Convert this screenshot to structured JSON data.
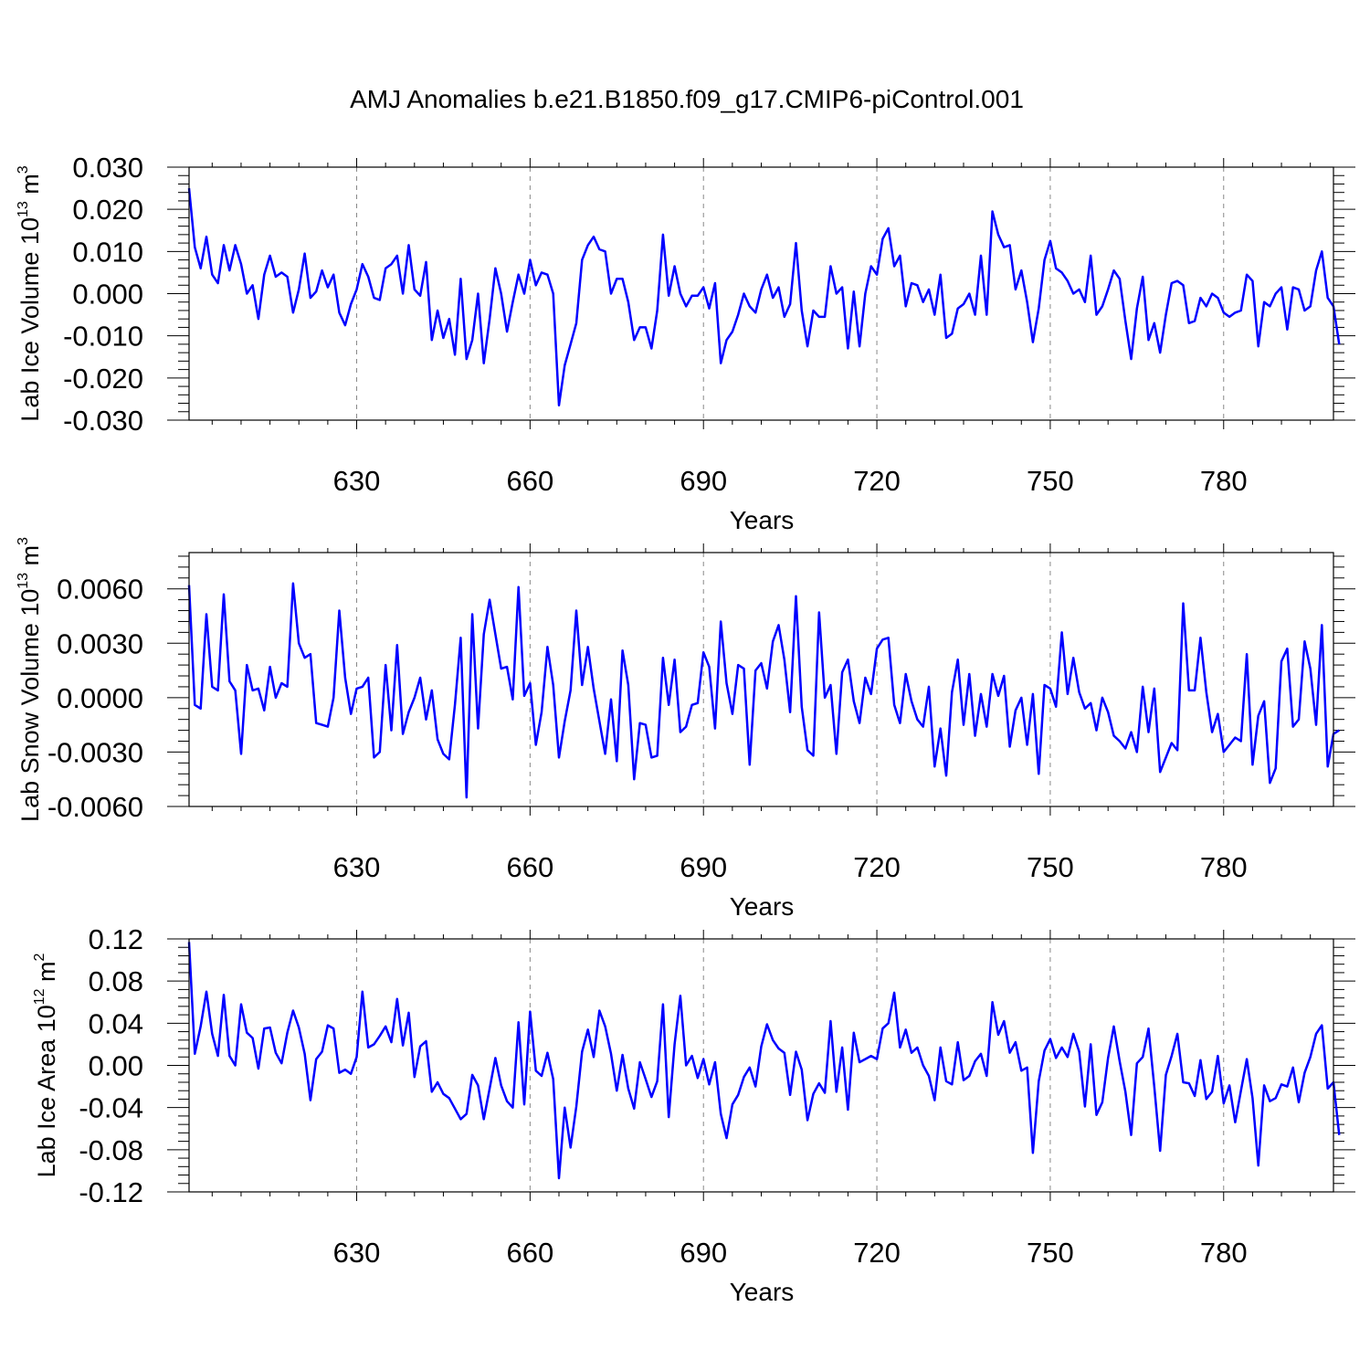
{
  "title": "AMJ Anomalies b.e21.B1850.f09_g17.CMIP6-piControl.001",
  "chart_data": [
    {
      "type": "line",
      "ylabel_prefix": "Lab Ice Volume 10",
      "ylabel_exp": "13",
      "ylabel_unit": " m",
      "ylabel_unit_exp": "3",
      "xlabel": "Years",
      "xlim": [
        601,
        799
      ],
      "ylim": [
        -0.03,
        0.03
      ],
      "xticks": [
        630,
        660,
        690,
        720,
        750,
        780
      ],
      "xtick_labels": [
        "630",
        "660",
        "690",
        "720",
        "750",
        "780"
      ],
      "yticks": [
        -0.03,
        -0.02,
        -0.01,
        0.0,
        0.01,
        0.02,
        0.03
      ],
      "ytick_labels": [
        "-0.030",
        "-0.020",
        "-0.010",
        "0.000",
        "0.010",
        "0.020",
        "0.030"
      ],
      "x_start": 601,
      "color": "#0000ff",
      "values": [
        0.025,
        0.011,
        0.006,
        0.0135,
        0.0045,
        0.0025,
        0.0115,
        0.0055,
        0.0115,
        0.007,
        0.0,
        0.002,
        -0.006,
        0.0045,
        0.009,
        0.004,
        0.005,
        0.004,
        -0.0045,
        0.001,
        0.0095,
        -0.001,
        0.0005,
        0.0055,
        0.0015,
        0.0045,
        -0.0045,
        -0.0075,
        -0.0025,
        0.001,
        0.007,
        0.004,
        -0.001,
        -0.0015,
        0.006,
        0.007,
        0.009,
        0.0,
        0.0115,
        0.001,
        -0.0005,
        0.0075,
        -0.011,
        -0.004,
        -0.0105,
        -0.006,
        -0.0145,
        0.0035,
        -0.0155,
        -0.011,
        0.0,
        -0.0165,
        -0.006,
        0.006,
        0.0,
        -0.009,
        -0.002,
        0.0045,
        0.0,
        0.008,
        0.002,
        0.005,
        0.0045,
        0.0,
        -0.0265,
        -0.017,
        -0.012,
        -0.007,
        0.008,
        0.0115,
        0.0135,
        0.0105,
        0.01,
        0.0,
        0.0035,
        0.0035,
        -0.002,
        -0.011,
        -0.008,
        -0.008,
        -0.013,
        -0.004,
        0.014,
        -0.0005,
        0.0065,
        0.0,
        -0.003,
        -0.0005,
        -0.0005,
        0.0015,
        -0.0035,
        0.0025,
        -0.0165,
        -0.011,
        -0.009,
        -0.005,
        0.0,
        -0.003,
        -0.0045,
        0.001,
        0.0045,
        -0.001,
        0.0015,
        -0.0055,
        -0.0025,
        0.012,
        -0.004,
        -0.0125,
        -0.004,
        -0.0055,
        -0.0055,
        0.0065,
        0.0,
        0.0015,
        -0.013,
        0.0005,
        -0.0125,
        0.0,
        0.0065,
        0.0045,
        0.013,
        0.0155,
        0.0065,
        0.009,
        -0.003,
        0.0025,
        0.002,
        -0.002,
        0.001,
        -0.005,
        0.0045,
        -0.0105,
        -0.0095,
        -0.0035,
        -0.0025,
        -0.0,
        -0.005,
        0.009,
        -0.005,
        0.0195,
        0.014,
        0.011,
        0.0115,
        0.001,
        0.0055,
        -0.002,
        -0.0115,
        -0.0035,
        0.008,
        0.0125,
        0.006,
        0.005,
        0.003,
        0.0,
        0.001,
        -0.002,
        0.009,
        -0.005,
        -0.003,
        0.001,
        0.0055,
        0.0035,
        -0.0065,
        -0.0155,
        -0.0035,
        0.004,
        -0.011,
        -0.007,
        -0.014,
        -0.005,
        0.0025,
        0.003,
        0.002,
        -0.007,
        -0.0065,
        -0.001,
        -0.003,
        0.0,
        -0.001,
        -0.0045,
        -0.0055,
        -0.0045,
        -0.004,
        0.0045,
        0.003,
        -0.0125,
        -0.002,
        -0.003,
        0.0,
        0.0015,
        -0.0085,
        0.0015,
        0.001,
        -0.004,
        -0.003,
        0.0055,
        0.01,
        -0.001,
        -0.003,
        -0.012
      ]
    },
    {
      "type": "line",
      "ylabel_prefix": "Lab Snow Volume 10",
      "ylabel_exp": "13",
      "ylabel_unit": " m",
      "ylabel_unit_exp": "3",
      "xlabel": "Years",
      "xlim": [
        601,
        799
      ],
      "ylim": [
        -0.006,
        0.008
      ],
      "xticks": [
        630,
        660,
        690,
        720,
        750,
        780
      ],
      "xtick_labels": [
        "630",
        "660",
        "690",
        "720",
        "750",
        "780"
      ],
      "yticks": [
        -0.006,
        -0.003,
        0.0,
        0.003,
        0.006
      ],
      "ytick_labels": [
        "-0.0060",
        "-0.0030",
        "0.0000",
        "0.0030",
        "0.0060"
      ],
      "x_start": 601,
      "color": "#0000ff",
      "values": [
        0.0062,
        -0.0004,
        -0.0006,
        0.0046,
        0.0006,
        0.0004,
        0.0057,
        0.0009,
        0.0004,
        -0.0031,
        0.0018,
        0.0004,
        0.0005,
        -0.0007,
        0.0017,
        0.0,
        0.0008,
        0.0006,
        0.0063,
        0.003,
        0.0022,
        0.0024,
        -0.0014,
        -0.0015,
        -0.0016,
        0.0,
        0.0048,
        0.0011,
        -0.0009,
        0.0005,
        0.0006,
        0.0011,
        -0.0033,
        -0.003,
        0.0018,
        -0.0018,
        0.0029,
        -0.002,
        -0.0008,
        0.0,
        0.0011,
        -0.0012,
        0.0004,
        -0.0023,
        -0.0031,
        -0.0034,
        -0.0004,
        0.0033,
        -0.0055,
        0.0046,
        -0.0017,
        0.0035,
        0.0054,
        0.0035,
        0.0016,
        0.0017,
        -0.0001,
        0.0061,
        0.0001,
        0.0008,
        -0.0026,
        -0.0008,
        0.0028,
        0.0007,
        -0.0033,
        -0.0013,
        0.0004,
        0.0048,
        0.0007,
        0.0028,
        0.0005,
        -0.0013,
        -0.0031,
        -0.0001,
        -0.0035,
        0.0026,
        0.0007,
        -0.0045,
        -0.0014,
        -0.0015,
        -0.0033,
        -0.0032,
        0.0022,
        -0.0004,
        0.0021,
        -0.0019,
        -0.0016,
        -0.0004,
        -0.0003,
        0.0025,
        0.0017,
        -0.0017,
        0.0042,
        0.0008,
        -0.0009,
        0.0018,
        0.0016,
        -0.0037,
        0.0015,
        0.0019,
        0.0005,
        0.0031,
        0.004,
        0.0021,
        -0.0008,
        0.0056,
        -0.0005,
        -0.0029,
        -0.0032,
        0.0047,
        0.0,
        0.0007,
        -0.0031,
        0.0014,
        0.0021,
        -0.0002,
        -0.0014,
        0.0011,
        0.0002,
        0.0027,
        0.0032,
        0.0033,
        -0.0004,
        -0.0014,
        0.0013,
        -0.0002,
        -0.0012,
        -0.0016,
        0.0006,
        -0.0038,
        -0.0017,
        -0.0043,
        0.0003,
        0.0021,
        -0.0015,
        0.0013,
        -0.0021,
        0.0002,
        -0.0016,
        0.0013,
        0.0001,
        0.0012,
        -0.0027,
        -0.0007,
        0.0,
        -0.0026,
        0.0002,
        -0.0042,
        0.0007,
        0.0005,
        -0.0005,
        0.0036,
        0.0002,
        0.0022,
        0.0003,
        -0.0006,
        -0.0003,
        -0.0018,
        0.0,
        -0.0008,
        -0.0021,
        -0.0024,
        -0.0028,
        -0.0019,
        -0.003,
        0.0006,
        -0.0019,
        0.0005,
        -0.0041,
        -0.0033,
        -0.0025,
        -0.0029,
        0.0052,
        0.0004,
        0.0004,
        0.0033,
        0.0003,
        -0.0019,
        -0.0009,
        -0.003,
        -0.0026,
        -0.0022,
        -0.0024,
        0.0024,
        -0.0037,
        -0.001,
        -0.0002,
        -0.0047,
        -0.0039,
        0.002,
        0.0027,
        -0.0016,
        -0.0012,
        0.0031,
        0.0016,
        -0.0015,
        0.004,
        -0.0038,
        -0.002,
        -0.0018
      ]
    },
    {
      "type": "line",
      "ylabel_prefix": "Lab Ice Area 10",
      "ylabel_exp": "12",
      "ylabel_unit": " m",
      "ylabel_unit_exp": "2",
      "xlabel": "Years",
      "xlim": [
        601,
        799
      ],
      "ylim": [
        -0.12,
        0.12
      ],
      "xticks": [
        630,
        660,
        690,
        720,
        750,
        780
      ],
      "xtick_labels": [
        "630",
        "660",
        "690",
        "720",
        "750",
        "780"
      ],
      "yticks": [
        -0.12,
        -0.08,
        -0.04,
        0.0,
        0.04,
        0.08,
        0.12
      ],
      "ytick_labels": [
        "-0.12",
        "-0.08",
        "-0.04",
        "0.00",
        "0.04",
        "0.08",
        "0.12"
      ],
      "x_start": 601,
      "color": "#0000ff",
      "values": [
        0.117,
        0.011,
        0.037,
        0.07,
        0.03,
        0.009,
        0.067,
        0.009,
        0.0,
        0.058,
        0.031,
        0.026,
        -0.003,
        0.035,
        0.036,
        0.012,
        0.002,
        0.031,
        0.052,
        0.036,
        0.011,
        -0.033,
        0.006,
        0.013,
        0.038,
        0.035,
        -0.007,
        -0.004,
        -0.008,
        0.008,
        0.07,
        0.017,
        0.02,
        0.028,
        0.037,
        0.022,
        0.063,
        0.019,
        0.05,
        -0.011,
        0.018,
        0.023,
        -0.025,
        -0.016,
        -0.027,
        -0.031,
        -0.041,
        -0.051,
        -0.046,
        -0.009,
        -0.019,
        -0.051,
        -0.022,
        0.007,
        -0.019,
        -0.034,
        -0.04,
        0.041,
        -0.037,
        0.051,
        -0.005,
        -0.01,
        0.012,
        -0.013,
        -0.107,
        -0.04,
        -0.078,
        -0.039,
        0.013,
        0.034,
        0.008,
        0.052,
        0.037,
        0.011,
        -0.024,
        0.01,
        -0.022,
        -0.041,
        0.003,
        -0.013,
        -0.03,
        -0.015,
        0.058,
        -0.049,
        0.02,
        0.066,
        0.0,
        0.009,
        -0.012,
        0.006,
        -0.018,
        0.003,
        -0.046,
        -0.069,
        -0.037,
        -0.028,
        -0.011,
        -0.002,
        -0.02,
        0.018,
        0.039,
        0.024,
        0.016,
        0.012,
        -0.028,
        0.013,
        -0.004,
        -0.052,
        -0.027,
        -0.017,
        -0.026,
        0.042,
        -0.025,
        0.017,
        -0.042,
        0.031,
        0.003,
        0.006,
        0.009,
        0.006,
        0.035,
        0.04,
        0.069,
        0.017,
        0.034,
        0.012,
        0.017,
        0.0,
        -0.01,
        -0.033,
        0.017,
        -0.015,
        -0.018,
        0.022,
        -0.014,
        -0.01,
        0.004,
        0.011,
        -0.01,
        0.06,
        0.029,
        0.042,
        0.012,
        0.022,
        -0.005,
        -0.002,
        -0.083,
        -0.015,
        0.014,
        0.025,
        0.007,
        0.017,
        0.008,
        0.03,
        0.013,
        -0.039,
        0.02,
        -0.047,
        -0.035,
        0.007,
        0.037,
        0.004,
        -0.025,
        -0.066,
        0.002,
        0.008,
        0.035,
        -0.02,
        -0.081,
        -0.009,
        0.009,
        0.03,
        -0.016,
        -0.017,
        -0.029,
        0.005,
        -0.032,
        -0.025,
        0.009,
        -0.036,
        -0.019,
        -0.054,
        -0.024,
        0.006,
        -0.031,
        -0.095,
        -0.019,
        -0.034,
        -0.031,
        -0.018,
        -0.02,
        -0.002,
        -0.035,
        -0.007,
        0.008,
        0.03,
        0.038,
        -0.022,
        -0.016,
        -0.066
      ]
    }
  ]
}
